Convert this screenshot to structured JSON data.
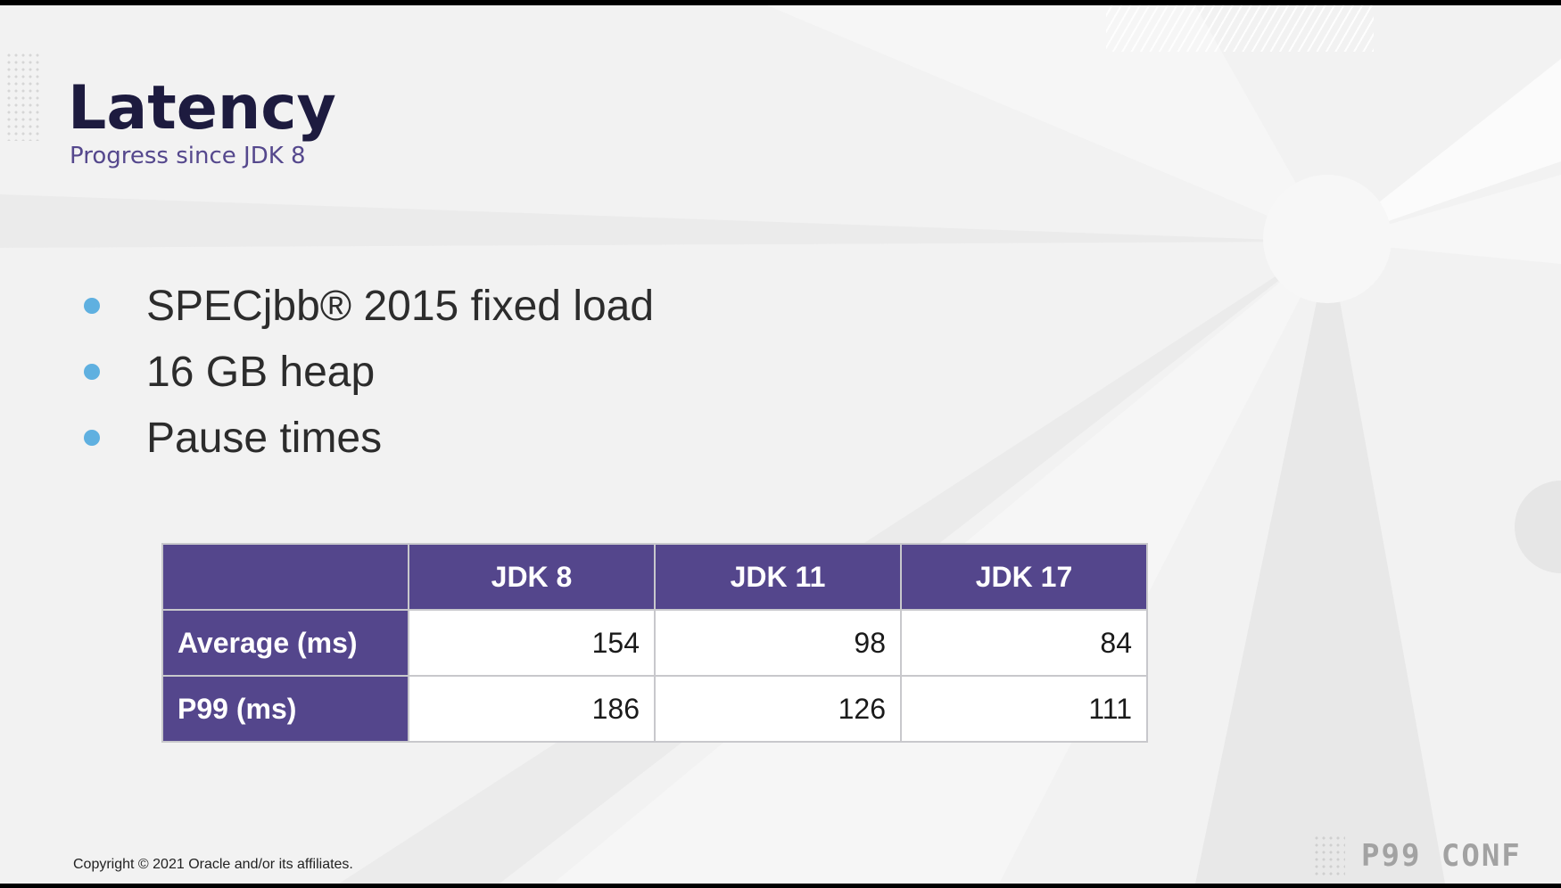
{
  "slide": {
    "title": "Latency",
    "subtitle": "Progress since JDK 8",
    "bullets": [
      "SPECjbb® 2015 fixed load",
      "16 GB heap",
      "Pause times"
    ]
  },
  "table": {
    "corner": "",
    "columns": [
      "JDK 8",
      "JDK 11",
      "JDK 17"
    ],
    "rows": [
      {
        "label": "Average (ms)",
        "values": [
          "154",
          "98",
          "84"
        ]
      },
      {
        "label": "P99 (ms)",
        "values": [
          "186",
          "126",
          "111"
        ]
      }
    ]
  },
  "footer": {
    "copyright": "Copyright © 2021 Oracle and/or its affiliates.",
    "brand": "P99 CONF"
  },
  "colors": {
    "title": "#1d1b3f",
    "subtitle": "#55488d",
    "table_header": "#54468c",
    "bullet": "#5fb0e0"
  }
}
